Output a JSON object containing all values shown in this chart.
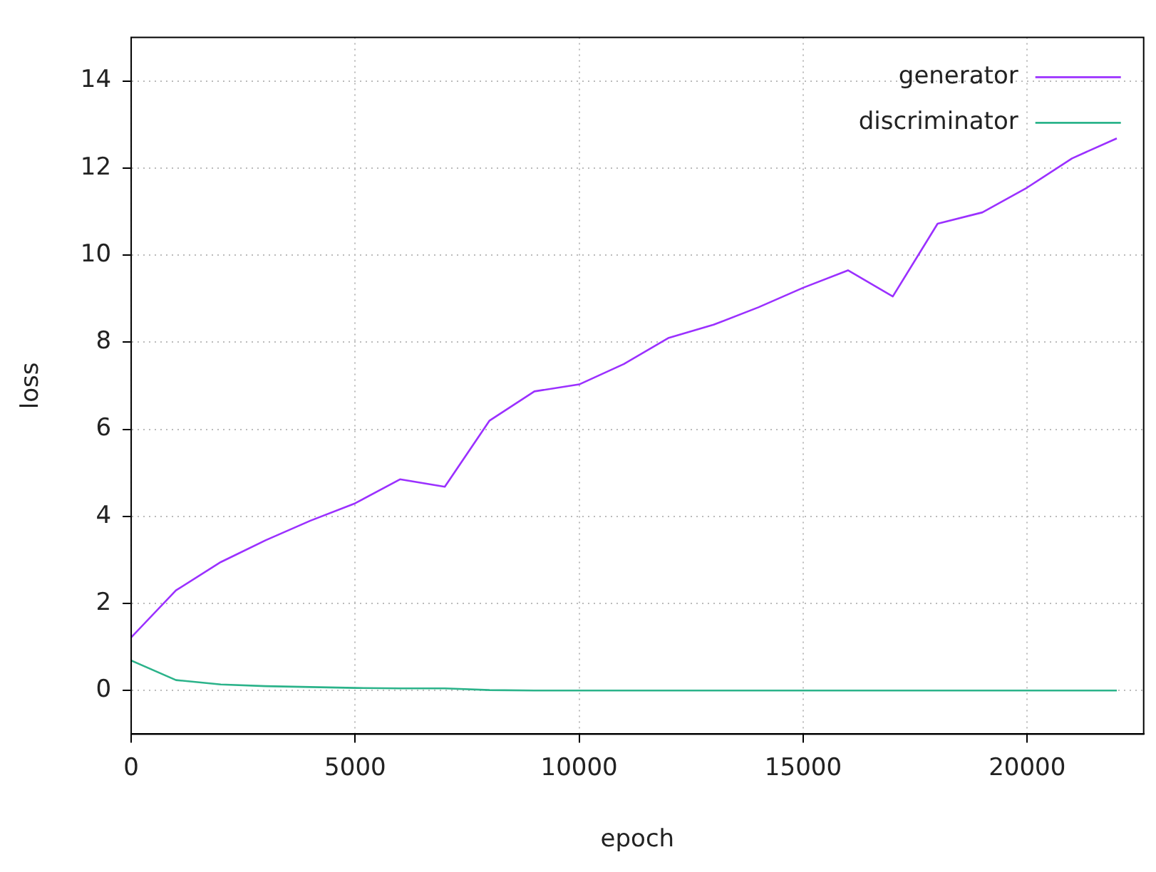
{
  "chart_data": {
    "type": "line",
    "xlabel": "epoch",
    "ylabel": "loss",
    "x": [
      0,
      1000,
      2000,
      3000,
      4000,
      5000,
      6000,
      7000,
      8000,
      9000,
      10000,
      11000,
      12000,
      13000,
      14000,
      15000,
      16000,
      17000,
      18000,
      19000,
      20000,
      21000,
      22000
    ],
    "series": [
      {
        "name": "generator",
        "color": "#9b30ff",
        "values": [
          1.22,
          2.3,
          2.95,
          3.45,
          3.9,
          4.3,
          4.85,
          4.68,
          6.2,
          6.87,
          7.03,
          7.5,
          8.1,
          8.4,
          8.8,
          9.25,
          9.65,
          9.05,
          10.72,
          10.98,
          11.55,
          12.22,
          12.68
        ]
      },
      {
        "name": "discriminator",
        "color": "#2bb38a",
        "values": [
          0.69,
          0.24,
          0.14,
          0.1,
          0.08,
          0.06,
          0.05,
          0.05,
          0.01,
          0,
          0,
          0,
          0,
          0,
          0,
          0,
          0,
          0,
          0,
          0,
          0,
          0,
          0
        ]
      }
    ],
    "xlim": [
      0,
      22600
    ],
    "ylim": [
      -1,
      15
    ],
    "xticks": [
      0,
      5000,
      10000,
      15000,
      20000
    ],
    "yticks": [
      0,
      2,
      4,
      6,
      8,
      10,
      12,
      14
    ],
    "grid": true,
    "legend": "top right",
    "marker": "none",
    "line_style": "solid"
  }
}
